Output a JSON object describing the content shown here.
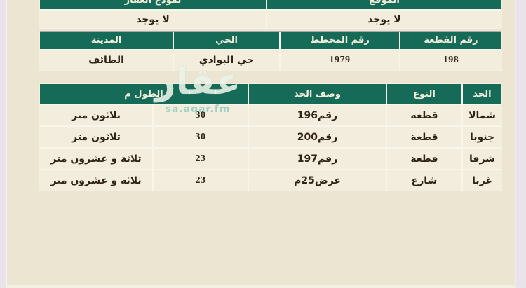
{
  "watermark": {
    "brand": "عقار",
    "domain": "sa.aqar.fm"
  },
  "colors": {
    "header_green": "#156a58",
    "header_text": "#f3f0dc",
    "page_bg": "#ebe5d1",
    "cell_bg": "#f3edde",
    "margin_bg": "#e9e3ec",
    "text": "#2f2317"
  },
  "info_table": {
    "headers": [
      "نموذج العقار",
      "الموقع"
    ],
    "values": [
      "لا يوجد",
      "لا يوجد"
    ]
  },
  "location_table": {
    "headers": [
      "المدينة",
      "الحي",
      "رقم المخطط",
      "رقم القطعة"
    ],
    "values": [
      "الطائف",
      "حي البوادي",
      "1979",
      "198"
    ]
  },
  "boundaries_table": {
    "headers": [
      "الطول م",
      "وصف الحد",
      "النوع",
      "الحد"
    ],
    "rows": [
      {
        "length_text": "ثلاثون متر",
        "length_m": "30",
        "description": "رقم196",
        "type": "قطعة",
        "side": "شمالا"
      },
      {
        "length_text": "ثلاثون متر",
        "length_m": "30",
        "description": "رقم200",
        "type": "قطعة",
        "side": "جنوبا"
      },
      {
        "length_text": "ثلاثة و عشرون متر",
        "length_m": "23",
        "description": "رقم197",
        "type": "قطعة",
        "side": "شرقا"
      },
      {
        "length_text": "ثلاثة و عشرون متر",
        "length_m": "23",
        "description": "عرض25م",
        "type": "شارع",
        "side": "غربا"
      }
    ]
  }
}
